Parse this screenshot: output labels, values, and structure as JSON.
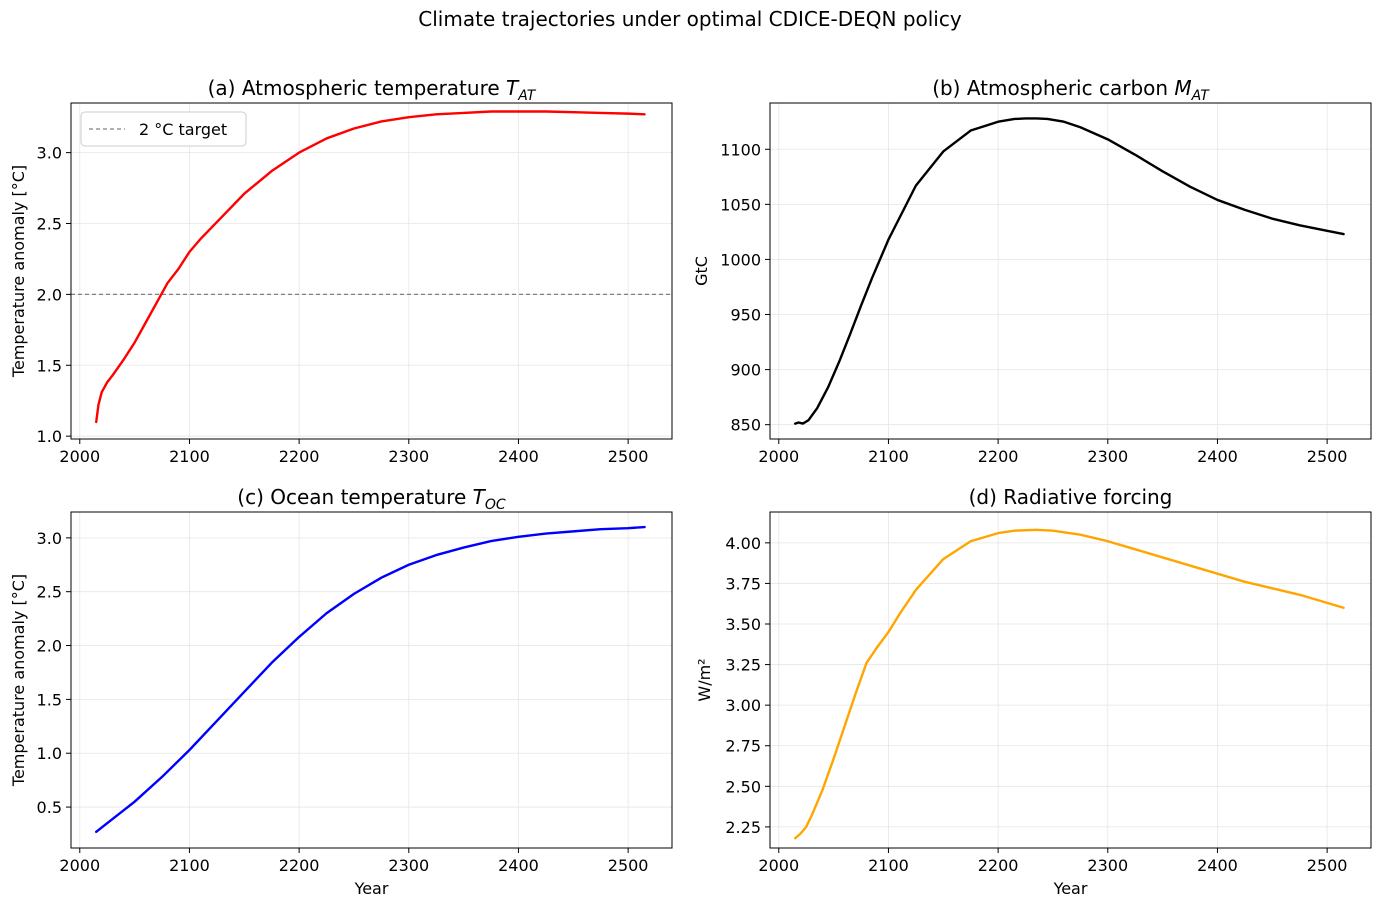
{
  "figure": {
    "suptitle": "Climate trajectories under optimal CDICE-DEQN policy"
  },
  "chart_data": [
    {
      "id": "a",
      "type": "line",
      "title": "(a) Atmospheric temperature ",
      "title_symbol": "T",
      "title_sub": "AT",
      "xlabel": "",
      "ylabel": "Temperature anomaly [°C]",
      "xlim": [
        1992,
        2540
      ],
      "ylim": [
        0.98,
        3.35
      ],
      "xticks": [
        2000,
        2100,
        2200,
        2300,
        2400,
        2500
      ],
      "yticks": [
        1.0,
        1.5,
        2.0,
        2.5,
        3.0
      ],
      "ytick_decimals": 1,
      "grid": true,
      "legend": {
        "placement": "top-left",
        "entries": [
          "2 °C target"
        ]
      },
      "hline": {
        "y": 2.0,
        "label": "2 °C target",
        "color": "#808080",
        "style": "dashed"
      },
      "series": [
        {
          "color": "#ff0000",
          "x": [
            2015,
            2017,
            2020,
            2025,
            2030,
            2040,
            2050,
            2060,
            2070,
            2080,
            2090,
            2100,
            2110,
            2125,
            2150,
            2175,
            2200,
            2225,
            2250,
            2275,
            2300,
            2325,
            2350,
            2375,
            2400,
            2425,
            2450,
            2475,
            2500,
            2515
          ],
          "y": [
            1.1,
            1.22,
            1.31,
            1.38,
            1.43,
            1.54,
            1.66,
            1.8,
            1.94,
            2.08,
            2.18,
            2.3,
            2.39,
            2.51,
            2.71,
            2.87,
            3.0,
            3.1,
            3.17,
            3.22,
            3.25,
            3.27,
            3.28,
            3.29,
            3.29,
            3.29,
            3.285,
            3.28,
            3.275,
            3.27
          ]
        }
      ]
    },
    {
      "id": "b",
      "type": "line",
      "title": "(b) Atmospheric carbon ",
      "title_symbol": "M",
      "title_sub": "AT",
      "xlabel": "",
      "ylabel": "GtC",
      "xlim": [
        1992,
        2540
      ],
      "ylim": [
        837,
        1142
      ],
      "xticks": [
        2000,
        2100,
        2200,
        2300,
        2400,
        2500
      ],
      "yticks": [
        850,
        900,
        950,
        1000,
        1050,
        1100
      ],
      "ytick_decimals": 0,
      "grid": true,
      "series": [
        {
          "color": "#000000",
          "x": [
            2015,
            2018,
            2022,
            2027,
            2035,
            2045,
            2055,
            2065,
            2075,
            2085,
            2100,
            2125,
            2150,
            2175,
            2200,
            2215,
            2225,
            2235,
            2245,
            2260,
            2275,
            2300,
            2325,
            2350,
            2375,
            2400,
            2425,
            2450,
            2475,
            2500,
            2515
          ],
          "y": [
            851,
            852,
            851,
            854,
            865,
            884,
            907,
            932,
            958,
            983,
            1018,
            1067,
            1098,
            1117,
            1125,
            1127.5,
            1128,
            1128,
            1127.5,
            1125,
            1120,
            1109,
            1095,
            1080,
            1066,
            1054,
            1045,
            1037,
            1031,
            1026,
            1023
          ]
        }
      ]
    },
    {
      "id": "c",
      "type": "line",
      "title": "(c) Ocean temperature ",
      "title_symbol": "T",
      "title_sub": "OC",
      "xlabel": "Year",
      "ylabel": "Temperature anomaly [°C]",
      "xlim": [
        1992,
        2540
      ],
      "ylim": [
        0.12,
        3.24
      ],
      "xticks": [
        2000,
        2100,
        2200,
        2300,
        2400,
        2500
      ],
      "yticks": [
        0.5,
        1.0,
        1.5,
        2.0,
        2.5,
        3.0
      ],
      "ytick_decimals": 1,
      "grid": true,
      "series": [
        {
          "color": "#0000ff",
          "x": [
            2015,
            2025,
            2050,
            2075,
            2100,
            2125,
            2150,
            2175,
            2200,
            2225,
            2250,
            2275,
            2300,
            2325,
            2350,
            2375,
            2400,
            2425,
            2450,
            2475,
            2500,
            2515
          ],
          "y": [
            0.27,
            0.35,
            0.55,
            0.78,
            1.03,
            1.3,
            1.57,
            1.84,
            2.08,
            2.3,
            2.48,
            2.63,
            2.75,
            2.84,
            2.91,
            2.97,
            3.01,
            3.04,
            3.06,
            3.08,
            3.09,
            3.1
          ]
        }
      ]
    },
    {
      "id": "d",
      "type": "line",
      "title": "(d) Radiative forcing",
      "title_symbol": "",
      "title_sub": "",
      "xlabel": "Year",
      "ylabel": "W/m²",
      "xlim": [
        1992,
        2540
      ],
      "ylim": [
        2.12,
        4.19
      ],
      "xticks": [
        2000,
        2100,
        2200,
        2300,
        2400,
        2500
      ],
      "yticks": [
        2.25,
        2.5,
        2.75,
        3.0,
        3.25,
        3.5,
        3.75,
        4.0
      ],
      "ytick_decimals": 2,
      "grid": true,
      "series": [
        {
          "color": "#ffa500",
          "x": [
            2015,
            2020,
            2025,
            2030,
            2040,
            2050,
            2060,
            2070,
            2080,
            2090,
            2100,
            2110,
            2125,
            2150,
            2175,
            2200,
            2215,
            2235,
            2250,
            2275,
            2300,
            2325,
            2350,
            2375,
            2400,
            2425,
            2450,
            2475,
            2500,
            2515
          ],
          "y": [
            2.18,
            2.21,
            2.25,
            2.32,
            2.48,
            2.67,
            2.87,
            3.07,
            3.26,
            3.36,
            3.45,
            3.56,
            3.71,
            3.9,
            4.01,
            4.06,
            4.075,
            4.08,
            4.075,
            4.05,
            4.01,
            3.96,
            3.91,
            3.86,
            3.81,
            3.76,
            3.72,
            3.68,
            3.63,
            3.6
          ]
        }
      ]
    }
  ]
}
